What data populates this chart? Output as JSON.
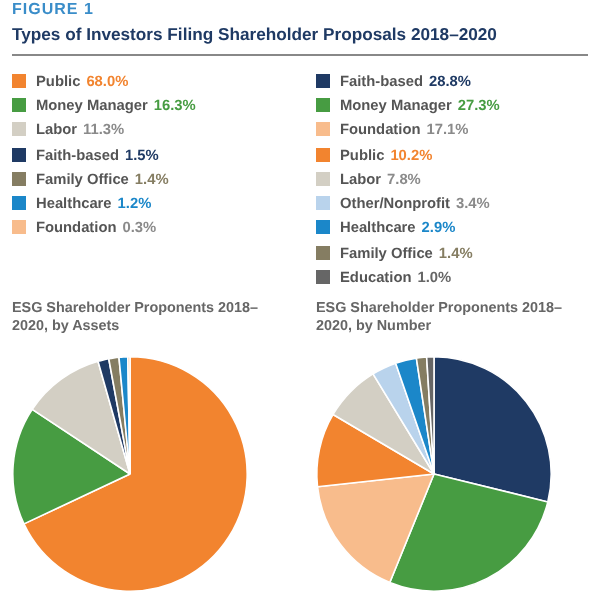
{
  "chart_data": [
    {
      "type": "other",
      "title": "Types of Investors Filing Shareholder Proposals 2018–2020",
      "annotations": [
        "FIGURE 1"
      ]
    },
    {
      "type": "pie",
      "title": "ESG Shareholder Proponents 2018–2020, by Assets",
      "legend": "top",
      "categories": [
        "Public",
        "Money Manager",
        "Labor",
        "Faith-based",
        "Family Office",
        "Healthcare",
        "Foundation"
      ],
      "values": [
        68.0,
        16.3,
        11.3,
        1.5,
        1.4,
        1.2,
        0.3
      ],
      "value_labels": [
        "68.0%",
        "16.3%",
        "11.3%",
        "1.5%",
        "1.4%",
        "1.2%",
        "0.3%"
      ],
      "colors": [
        "#f2842f",
        "#479c42",
        "#d3cfc4",
        "#1f3a64",
        "#857d62",
        "#1b87c9",
        "#f8bc8c"
      ]
    },
    {
      "type": "pie",
      "title": "ESG Shareholder Proponents 2018–2020, by Number",
      "legend": "top",
      "categories": [
        "Faith-based",
        "Money Manager",
        "Foundation",
        "Public",
        "Labor",
        "Other/Nonprofit",
        "Healthcare",
        "Family Office",
        "Education"
      ],
      "values": [
        28.8,
        27.3,
        17.1,
        10.2,
        7.8,
        3.4,
        2.9,
        1.4,
        1.0
      ],
      "value_labels": [
        "28.8%",
        "27.3%",
        "17.1%",
        "10.2%",
        "7.8%",
        "3.4%",
        "2.9%",
        "1.4%",
        "1.0%"
      ],
      "colors": [
        "#1f3a64",
        "#479c42",
        "#f8bc8c",
        "#f2842f",
        "#d3cfc4",
        "#b9d3ec",
        "#1b87c9",
        "#857d62",
        "#666666"
      ]
    }
  ]
}
